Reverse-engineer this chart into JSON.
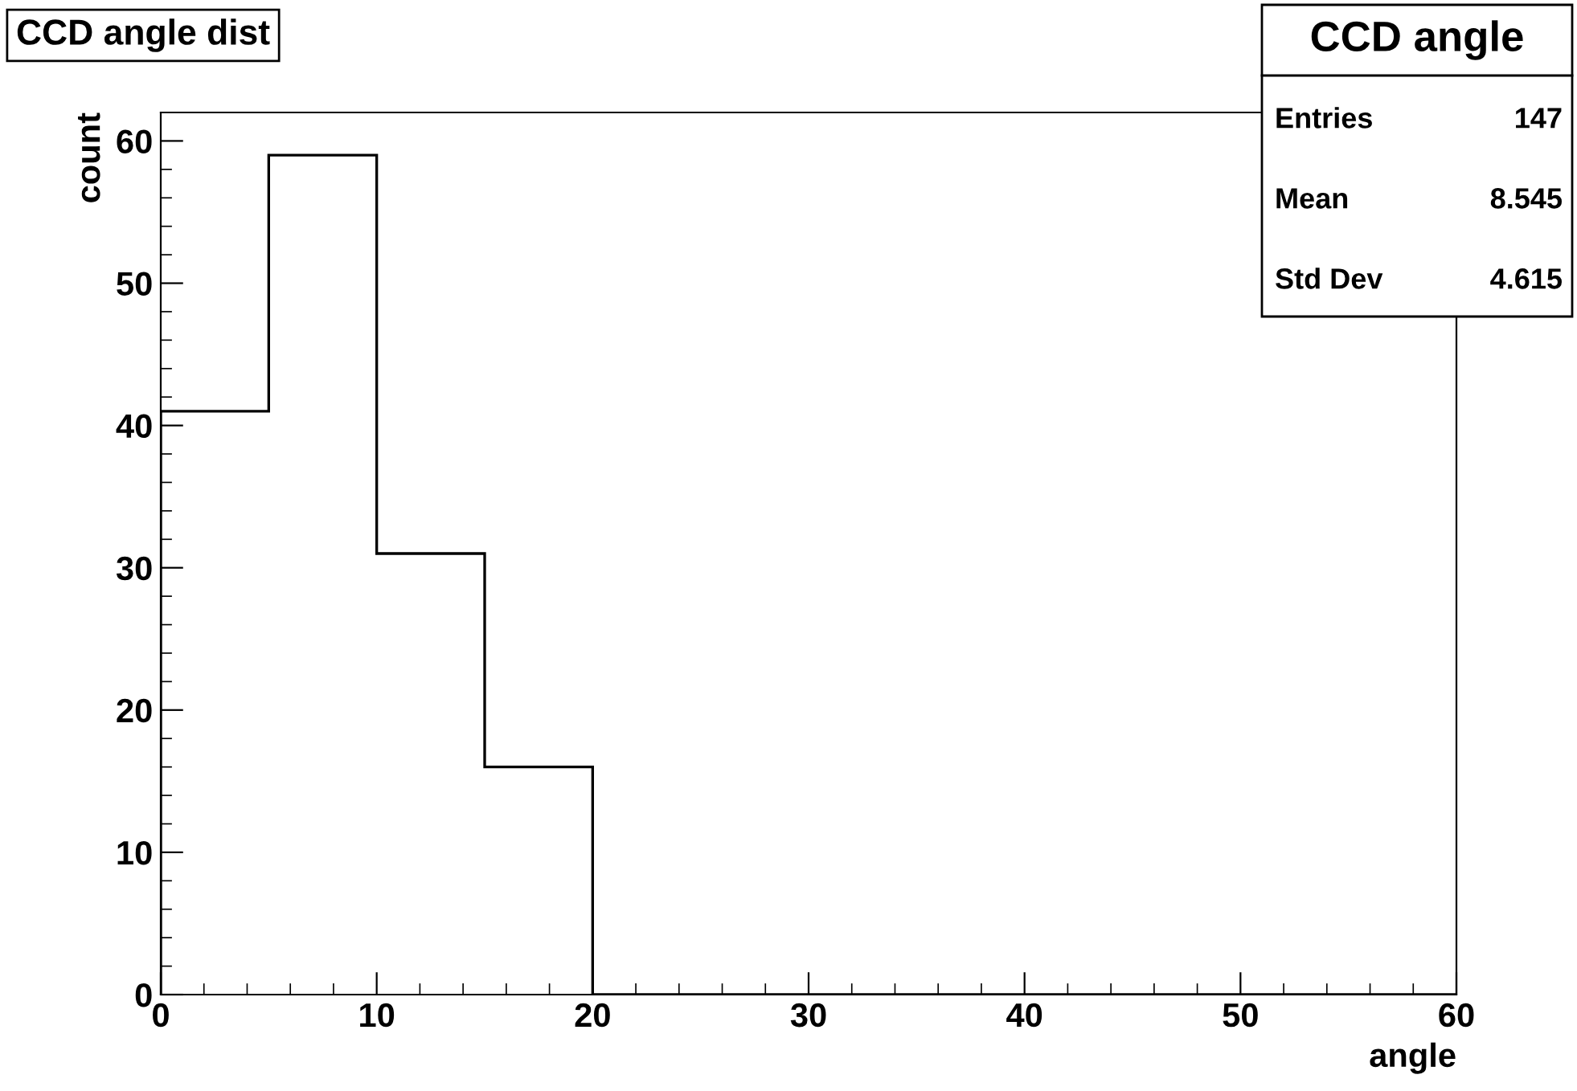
{
  "chart_data": {
    "type": "histogram",
    "title": "CCD angle dist",
    "xlabel": "angle",
    "ylabel": "count",
    "bins": [
      0,
      5,
      10,
      15,
      20,
      25,
      30,
      35,
      40,
      45,
      50,
      55,
      60
    ],
    "values": [
      41,
      59,
      31,
      16,
      0,
      0,
      0,
      0,
      0,
      0,
      0,
      0
    ],
    "color": "#000000",
    "xlim": [
      0,
      60
    ],
    "xticks": [
      0,
      10,
      20,
      30,
      40,
      50,
      60
    ],
    "ylim": [
      0,
      62
    ],
    "yticks": [
      0,
      10,
      20,
      30,
      40,
      50,
      60
    ],
    "grid": false,
    "annotations": [
      "CCD angle",
      "Entries",
      "147",
      "Mean",
      "8.545",
      "Std Dev",
      "4.615"
    ]
  }
}
